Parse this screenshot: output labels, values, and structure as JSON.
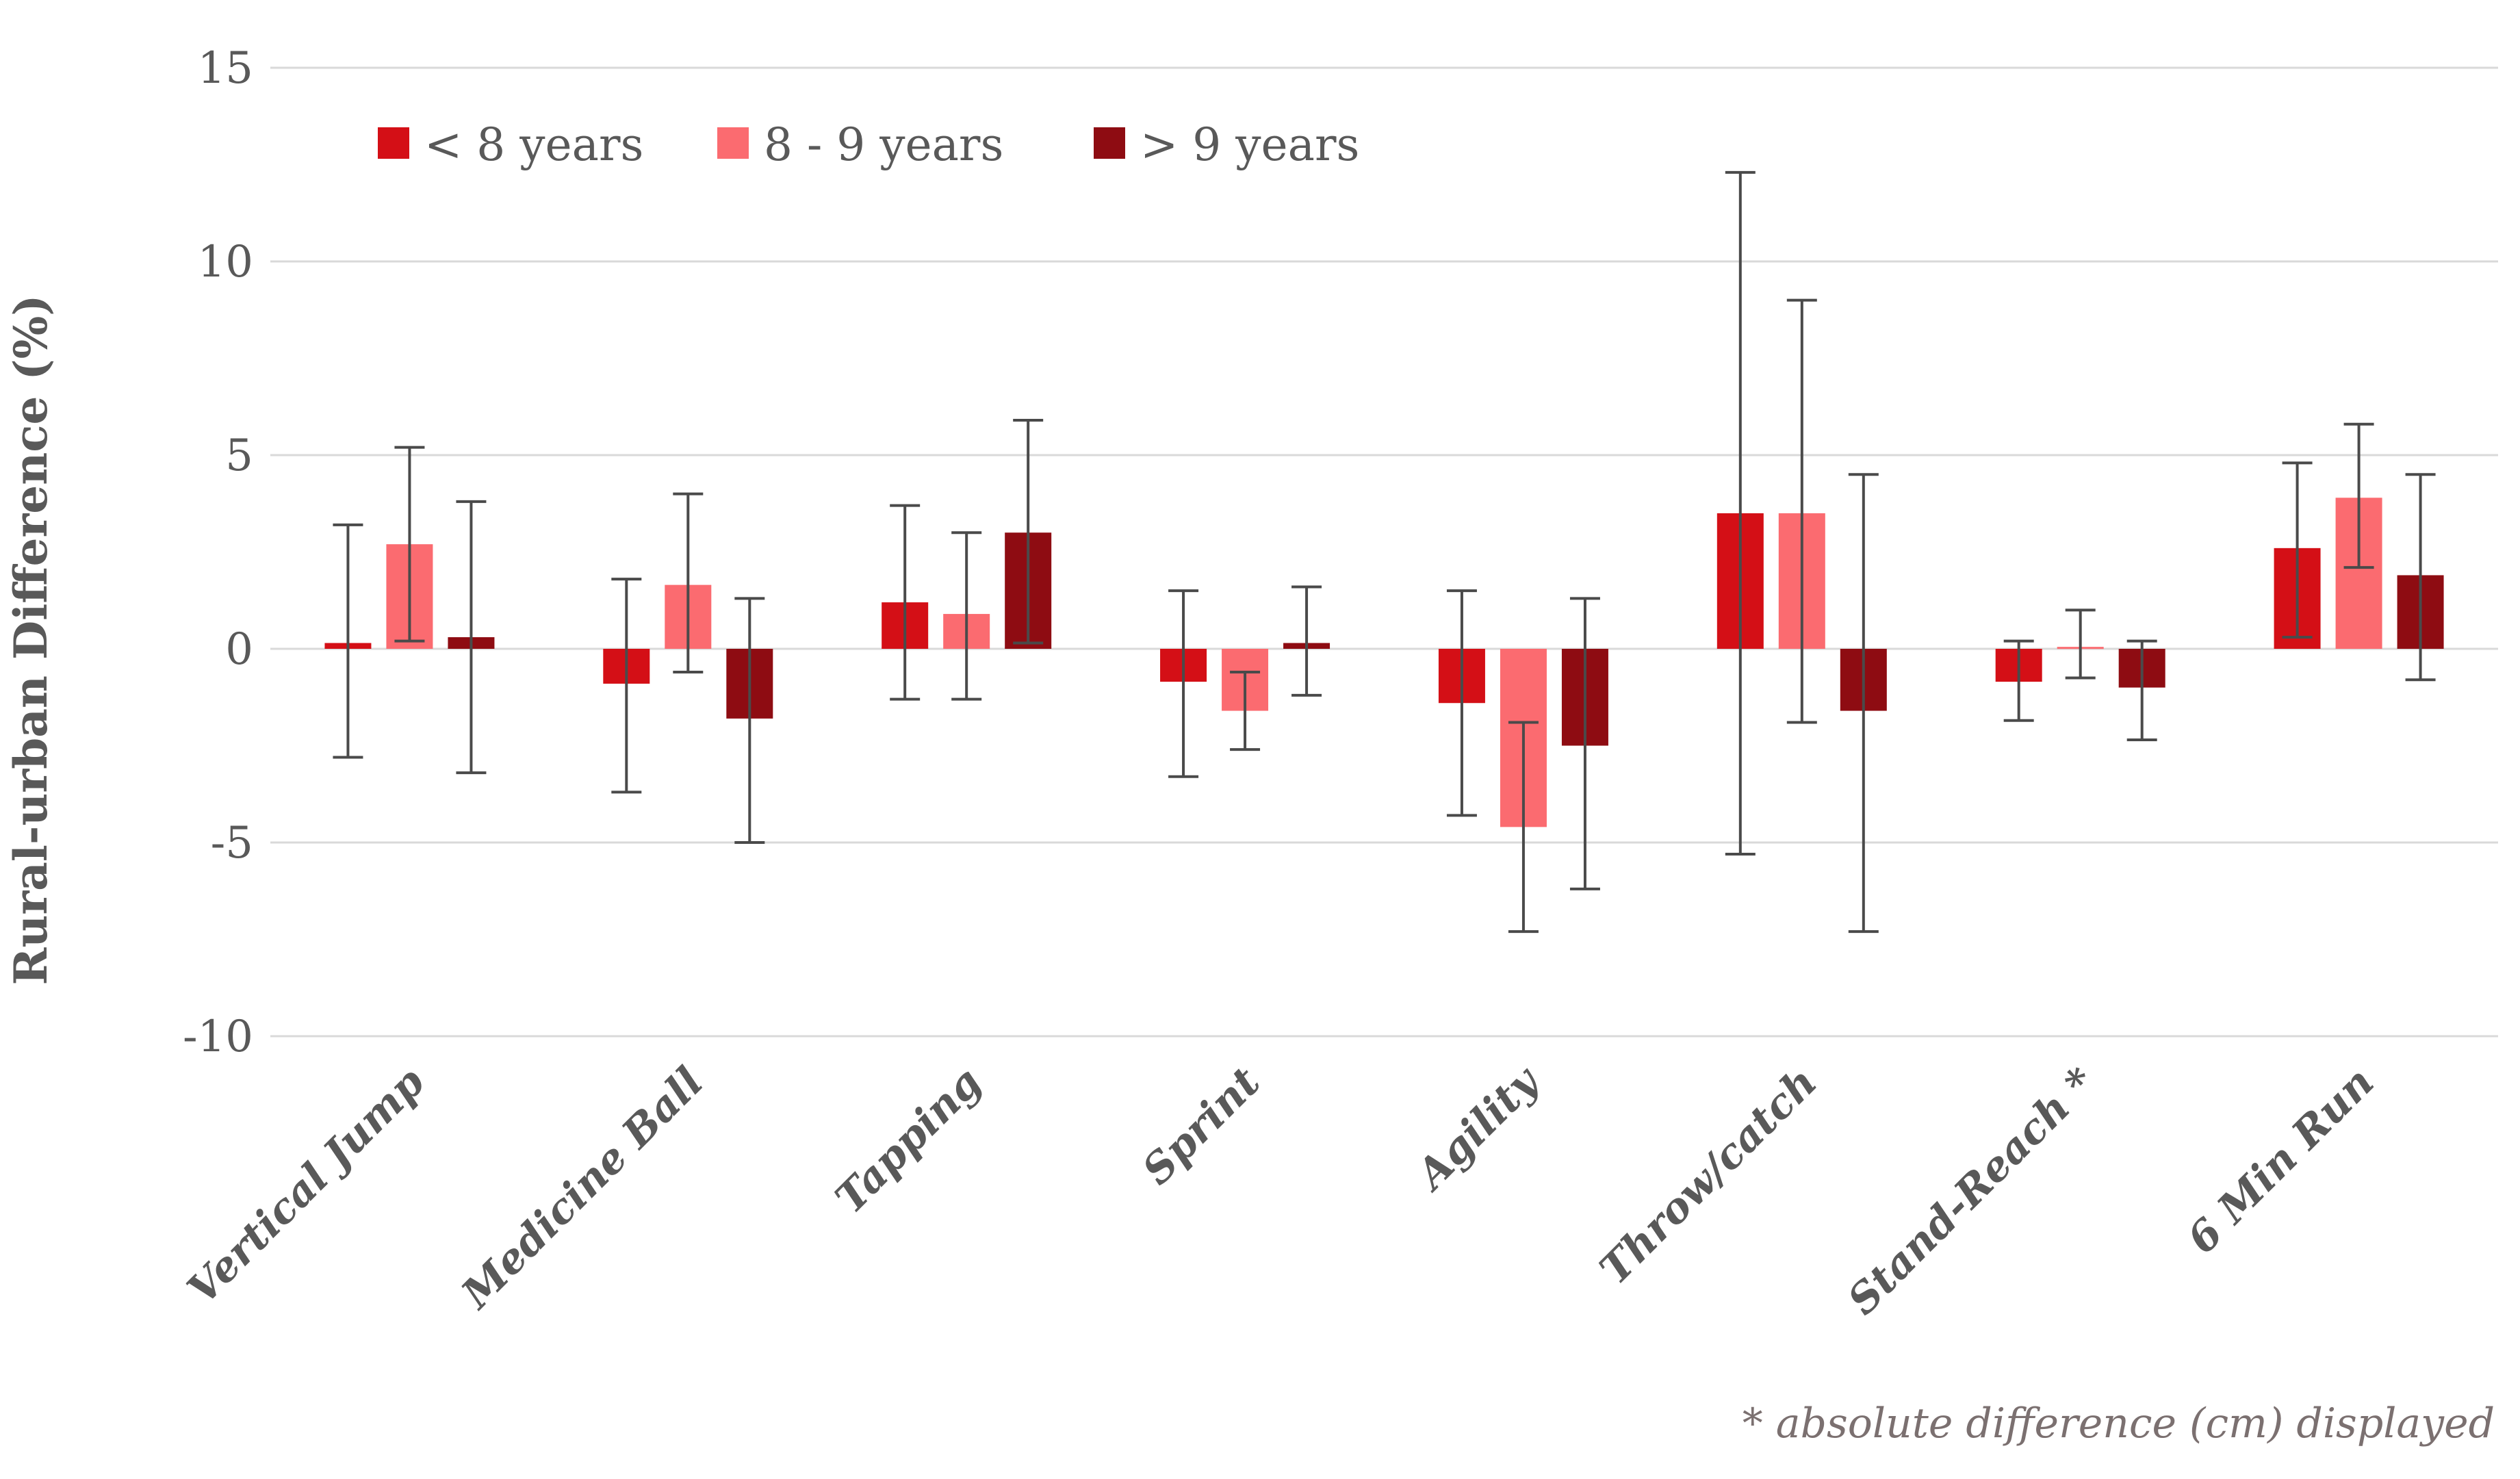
{
  "figure": {
    "footnote": "* absolute difference (cm) displayed"
  },
  "colors": {
    "series_lt8": "#d40f16",
    "series_8to9": "#fb6b70",
    "series_gt9": "#8e0c12",
    "gridline": "#d9d9d9",
    "error_bar": "#4a4a4a",
    "axis_text": "#595959",
    "footnote_text": "#7b7070"
  },
  "chart_data": {
    "type": "bar",
    "title": "",
    "xlabel": "",
    "ylabel": "Rural-urban Difference (%)",
    "ylim": [
      -10,
      15
    ],
    "yticks": [
      15,
      10,
      5,
      0,
      -5,
      -10
    ],
    "grid": true,
    "legend_position": "top-inside",
    "error_bars": true,
    "categories": [
      "Vertical Jump",
      "Medicine Ball",
      "Tapping",
      "Sprint",
      "Agility",
      "Throw/catch",
      "Stand-Reach *",
      "6 Min Run"
    ],
    "series": [
      {
        "name": "< 8 years",
        "color": "#d40f16",
        "values": [
          0.15,
          -0.9,
          1.2,
          -0.85,
          -1.4,
          3.5,
          -0.85,
          2.6
        ],
        "error_high": [
          3.2,
          1.8,
          3.7,
          1.5,
          1.5,
          12.3,
          0.2,
          4.8
        ],
        "error_low": [
          -2.8,
          -3.7,
          -1.3,
          -3.3,
          -4.3,
          -5.3,
          -1.85,
          0.3
        ]
      },
      {
        "name": "8 - 9 years",
        "color": "#fb6b70",
        "values": [
          2.7,
          1.65,
          0.9,
          -1.6,
          -4.6,
          3.5,
          0.05,
          3.9
        ],
        "error_high": [
          5.2,
          4.0,
          3.0,
          -0.6,
          -1.9,
          9.0,
          1.0,
          5.8
        ],
        "error_low": [
          0.2,
          -0.6,
          -1.3,
          -2.6,
          -7.3,
          -1.9,
          -0.75,
          2.1
        ]
      },
      {
        "name": "> 9 years",
        "color": "#8e0c12",
        "values": [
          0.3,
          -1.8,
          3.0,
          0.15,
          -2.5,
          -1.6,
          -1.0,
          1.9
        ],
        "error_high": [
          3.8,
          1.3,
          5.9,
          1.6,
          1.3,
          4.5,
          0.2,
          4.5
        ],
        "error_low": [
          -3.2,
          -5.0,
          0.15,
          -1.2,
          -6.2,
          -7.3,
          -2.35,
          -0.8
        ]
      }
    ]
  }
}
